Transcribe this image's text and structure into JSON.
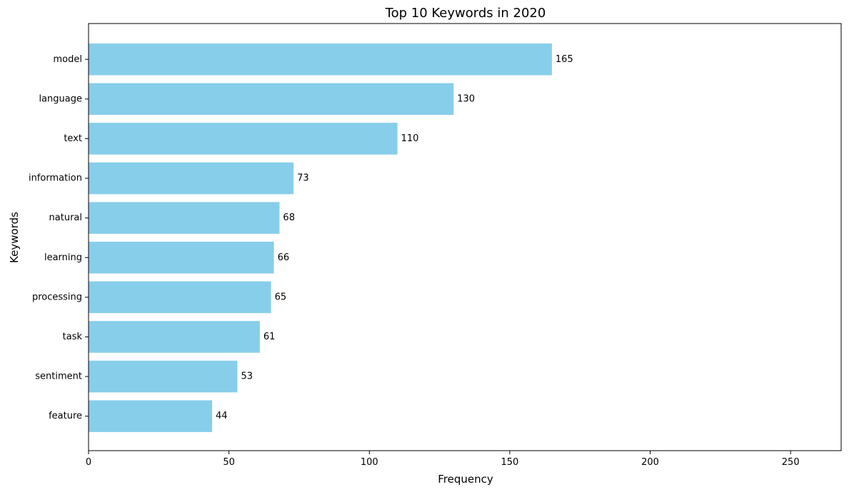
{
  "chart_data": {
    "type": "bar",
    "orientation": "horizontal",
    "title": "Top 10 Keywords in 2020",
    "xlabel": "Frequency",
    "ylabel": "Keywords",
    "categories": [
      "model",
      "language",
      "text",
      "information",
      "natural",
      "learning",
      "processing",
      "task",
      "sentiment",
      "feature"
    ],
    "values": [
      165,
      130,
      110,
      73,
      68,
      66,
      65,
      61,
      53,
      44
    ],
    "data_labels": [
      "165",
      "130",
      "110",
      "73",
      "68",
      "66",
      "65",
      "61",
      "53",
      "44"
    ],
    "xlim": [
      0,
      268
    ],
    "xticks": [
      0,
      50,
      100,
      150,
      200,
      250
    ],
    "xtick_labels": [
      "0",
      "50",
      "100",
      "150",
      "200",
      "250"
    ],
    "grid": false,
    "legend": "none",
    "colors": {
      "bar": "#87ceeb",
      "axis": "#000000",
      "text": "#000000"
    }
  }
}
